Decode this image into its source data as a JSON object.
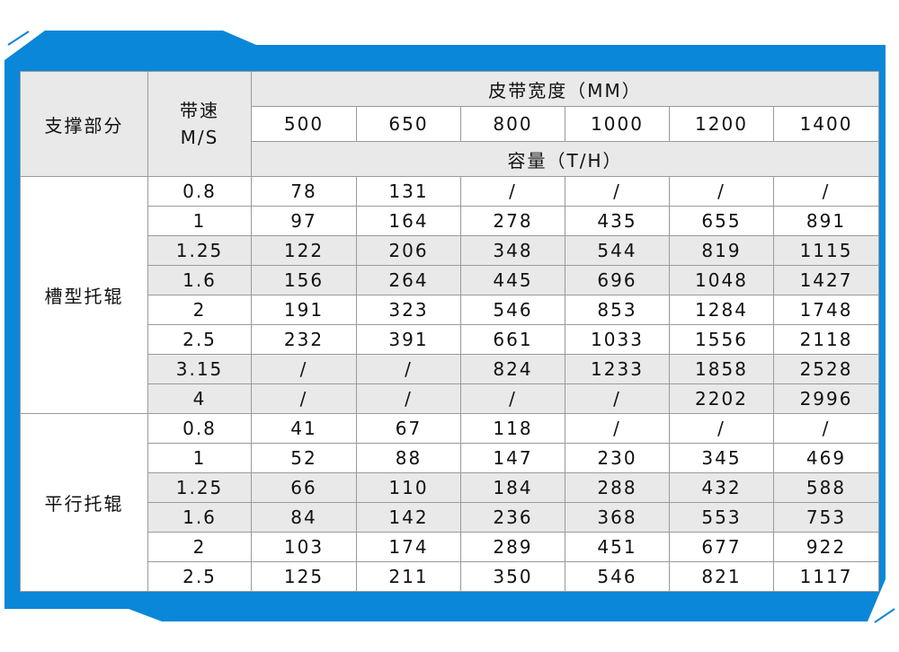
{
  "colors": {
    "frame": "#0a87d8",
    "header_bg": "#e9e9e9",
    "border": "#9a9a9a"
  },
  "header": {
    "support": "支撑部分",
    "speed": "带速\nM/S",
    "width_title": "皮带宽度（MM）",
    "widths": [
      "500",
      "650",
      "800",
      "1000",
      "1200",
      "1400"
    ],
    "capacity_title": "容量（T/H）"
  },
  "groups": [
    {
      "name": "槽型托辊",
      "rows": [
        [
          "0.8",
          "78",
          "131",
          "/",
          "/",
          "/",
          "/"
        ],
        [
          "1",
          "97",
          "164",
          "278",
          "435",
          "655",
          "891"
        ],
        [
          "1.25",
          "122",
          "206",
          "348",
          "544",
          "819",
          "1115"
        ],
        [
          "1.6",
          "156",
          "264",
          "445",
          "696",
          "1048",
          "1427"
        ],
        [
          "2",
          "191",
          "323",
          "546",
          "853",
          "1284",
          "1748"
        ],
        [
          "2.5",
          "232",
          "391",
          "661",
          "1033",
          "1556",
          "2118"
        ],
        [
          "3.15",
          "/",
          "/",
          "824",
          "1233",
          "1858",
          "2528"
        ],
        [
          "4",
          "/",
          "/",
          "/",
          "/",
          "2202",
          "2996"
        ]
      ]
    },
    {
      "name": "平行托辊",
      "rows": [
        [
          "0.8",
          "41",
          "67",
          "118",
          "/",
          "/",
          "/"
        ],
        [
          "1",
          "52",
          "88",
          "147",
          "230",
          "345",
          "469"
        ],
        [
          "1.25",
          "66",
          "110",
          "184",
          "288",
          "432",
          "588"
        ],
        [
          "1.6",
          "84",
          "142",
          "236",
          "368",
          "553",
          "753"
        ],
        [
          "2",
          "103",
          "174",
          "289",
          "451",
          "677",
          "922"
        ],
        [
          "2.5",
          "125",
          "211",
          "350",
          "546",
          "821",
          "1117"
        ]
      ]
    }
  ]
}
